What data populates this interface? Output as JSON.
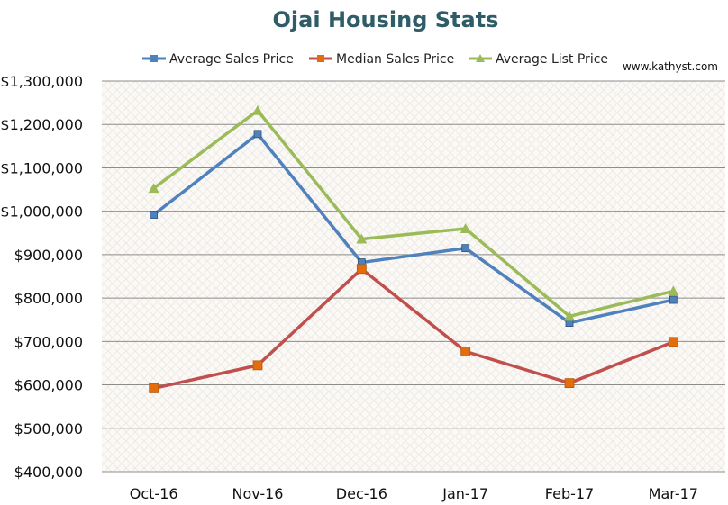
{
  "chart_data": {
    "type": "line",
    "title": "Ojai Housing Stats",
    "watermark": "www.kathyst.com",
    "categories": [
      "Oct-16",
      "Nov-16",
      "Dec-16",
      "Jan-17",
      "Feb-17",
      "Mar-17"
    ],
    "series": [
      {
        "name": "Average Sales Price",
        "color": "#4F81BD",
        "marker": "square",
        "values": [
          992000,
          1178000,
          882000,
          915000,
          743000,
          796000
        ]
      },
      {
        "name": "Median Sales Price",
        "color": "#C0504D",
        "marker": "square",
        "marker_color": "#E46C0A",
        "values": [
          592000,
          645000,
          867000,
          677000,
          604000,
          699000
        ]
      },
      {
        "name": "Average List Price",
        "color": "#9BBB59",
        "marker": "triangle",
        "values": [
          1053000,
          1232000,
          936000,
          960000,
          758000,
          816000
        ]
      }
    ],
    "ylim": [
      400000,
      1300000
    ],
    "y_ticks": [
      400000,
      500000,
      600000,
      700000,
      800000,
      900000,
      1000000,
      1100000,
      1200000,
      1300000
    ],
    "y_tick_labels": [
      "$400,000",
      "$500,000",
      "$600,000",
      "$700,000",
      "$800,000",
      "$900,000",
      "$1,000,000",
      "$1,100,000",
      "$1,200,000",
      "$1,300,000"
    ],
    "legend_position": "top",
    "grid": true,
    "xlabel": "",
    "ylabel": ""
  }
}
